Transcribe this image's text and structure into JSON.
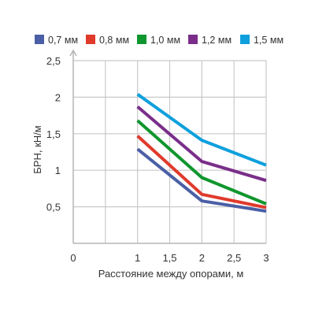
{
  "chart_data": {
    "type": "line",
    "title": "",
    "xlabel": "Расстояние между опорами, м",
    "ylabel": "БРН, кН/м",
    "xlim": [
      0,
      3
    ],
    "ylim": [
      0,
      2.5
    ],
    "x_ticks": [
      0,
      0.5,
      1,
      1.5,
      2,
      2.5,
      3
    ],
    "x_tick_labels": [
      "0",
      "",
      "1",
      "1,5",
      "2",
      "2,5",
      "3"
    ],
    "y_ticks": [
      0.5,
      1,
      1.5,
      2,
      2.5
    ],
    "y_tick_labels": [
      "0,5",
      "1",
      "1,5",
      "2",
      "2,5"
    ],
    "grid": true,
    "legend_position": "top",
    "x": [
      1,
      2,
      3
    ],
    "series": [
      {
        "name": "0,7 мм",
        "color": "#4a5fa5",
        "values": [
          1.29,
          0.58,
          0.44
        ]
      },
      {
        "name": "0,8 мм",
        "color": "#e03a2b",
        "values": [
          1.47,
          0.67,
          0.49
        ]
      },
      {
        "name": "1,0 мм",
        "color": "#10962e",
        "values": [
          1.68,
          0.9,
          0.54
        ]
      },
      {
        "name": "1,2 мм",
        "color": "#7a2e8a",
        "values": [
          1.87,
          1.12,
          0.86
        ]
      },
      {
        "name": "1,5 мм",
        "color": "#0ea0dd",
        "values": [
          2.04,
          1.41,
          1.07
        ]
      }
    ]
  }
}
